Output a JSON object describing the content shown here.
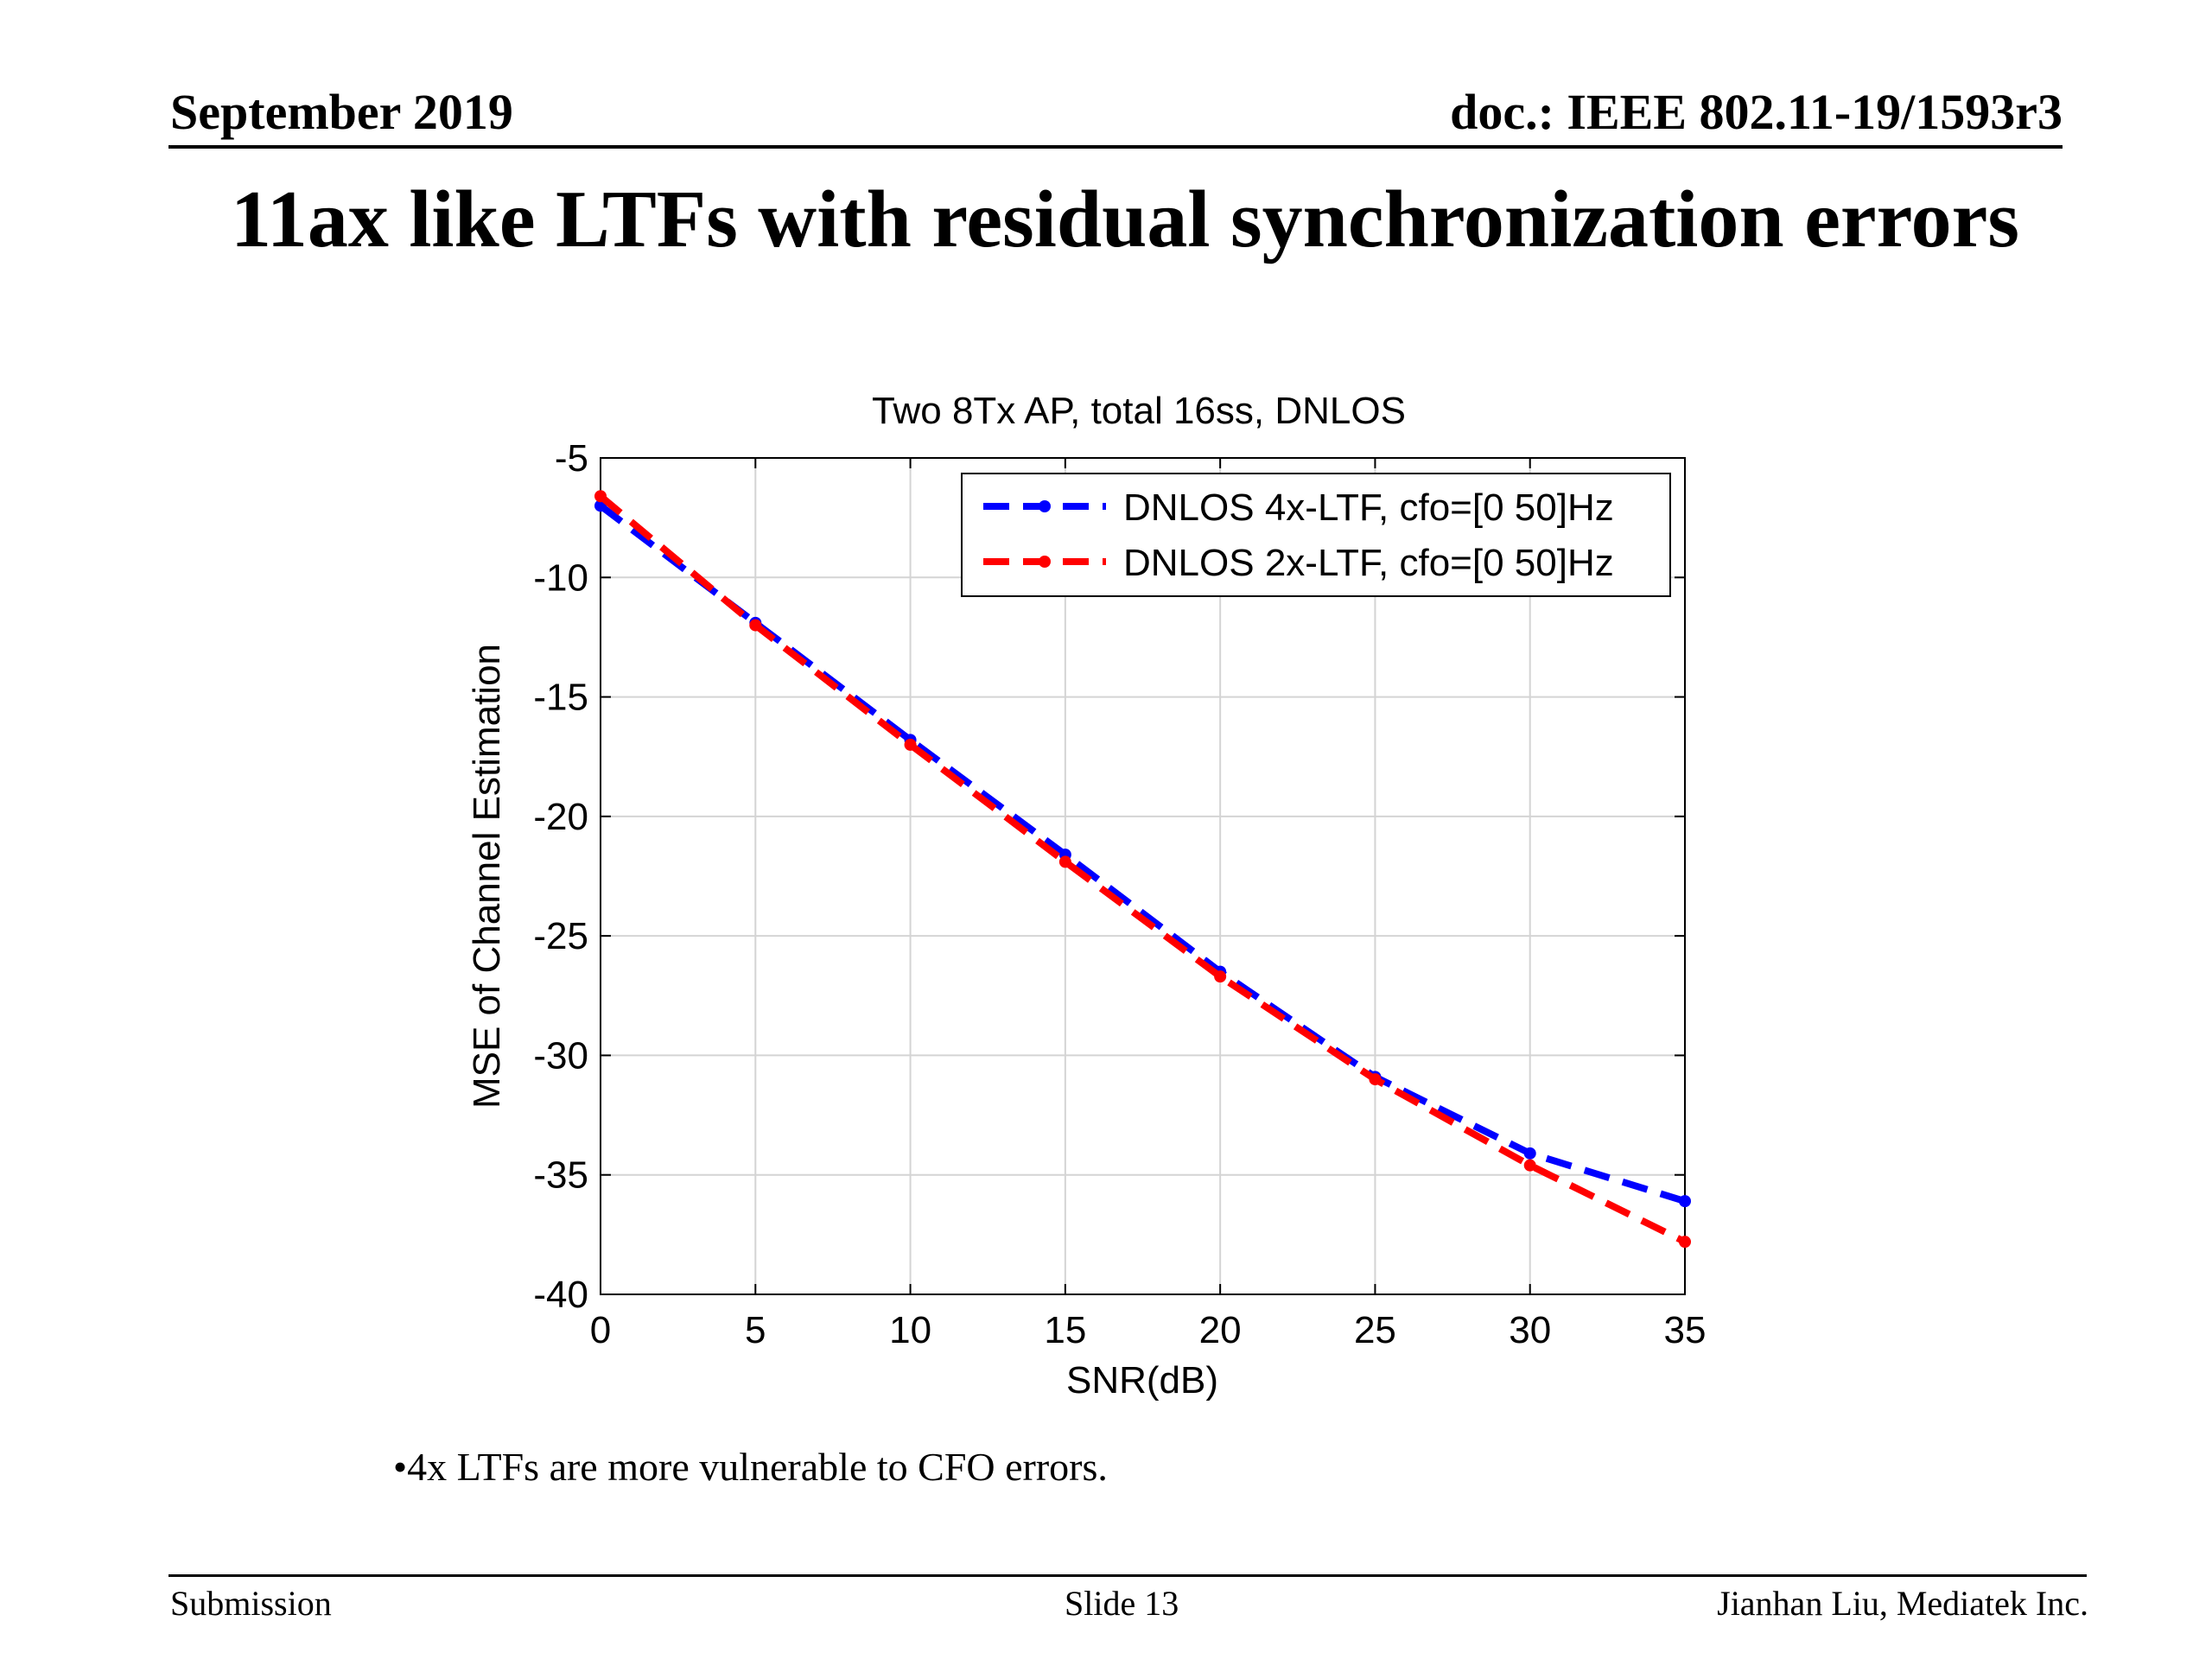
{
  "header": {
    "date": "September 2019",
    "doc": "doc.: IEEE 802.11-19/1593r3"
  },
  "slide": {
    "title": "11ax like LTFs with residual synchronization errors",
    "bullet": "•4x LTFs are more vulnerable to CFO errors."
  },
  "footer": {
    "left": "Submission",
    "center": "Slide 13",
    "right": "Jianhan Liu, Mediatek Inc."
  },
  "chart_data": {
    "type": "line",
    "title": "Two 8Tx AP, total 16ss, DNLOS",
    "xlabel": "SNR(dB)",
    "ylabel": "MSE of Channel Estimation",
    "xlim": [
      0,
      35
    ],
    "ylim": [
      -40,
      -5
    ],
    "xticks": [
      "0",
      "5",
      "10",
      "15",
      "20",
      "25",
      "30",
      "35"
    ],
    "yticks": [
      "-5",
      "-10",
      "-15",
      "-20",
      "-25",
      "-30",
      "-35",
      "-40"
    ],
    "grid": true,
    "legend_position": "top-right",
    "x": [
      0,
      5,
      10,
      15,
      20,
      25,
      30,
      35
    ],
    "series": [
      {
        "name": "DNLOS 4x-LTF, cfo=[0 50]Hz",
        "color": "#0000ff",
        "values": [
          -7.0,
          -11.9,
          -16.8,
          -21.6,
          -26.5,
          -30.9,
          -34.1,
          -36.1
        ]
      },
      {
        "name": "DNLOS 2x-LTF, cfo=[0 50]Hz",
        "color": "#ff0000",
        "values": [
          -6.6,
          -12.0,
          -17.0,
          -21.9,
          -26.7,
          -31.0,
          -34.6,
          -37.8
        ]
      }
    ]
  }
}
